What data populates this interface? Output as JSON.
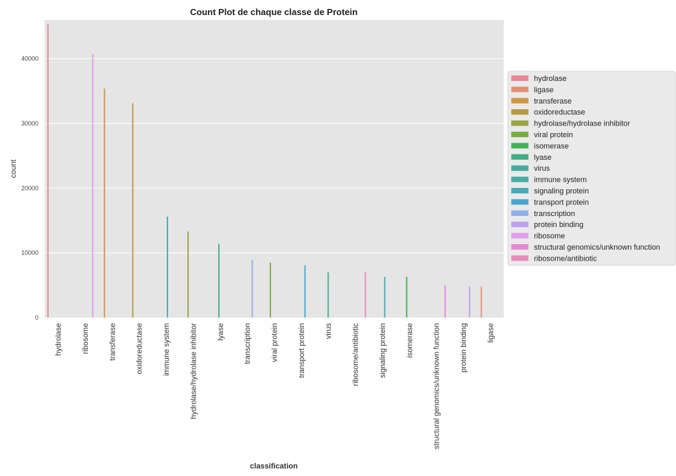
{
  "chart_data": {
    "type": "bar",
    "title": "Count Plot de chaque classe de Protein",
    "xlabel": "classification",
    "ylabel": "count",
    "ylim": [
      0,
      46000
    ],
    "yticks": [
      0,
      10000,
      20000,
      30000,
      40000
    ],
    "grid": true,
    "legend_position": "right",
    "categories": [
      "hydrolase",
      "ribosome",
      "transferase",
      "oxidoreductase",
      "immune system",
      "hydrolase/hydrolase inhibitor",
      "lyase",
      "transcription",
      "viral protein",
      "transport protein",
      "virus",
      "ribosome/antibiotic",
      "signaling protein",
      "isomerase",
      "structural genomics/unknown function",
      "protein binding",
      "ligase"
    ],
    "series": [
      {
        "name": "hydrolase",
        "color": "#ea8595",
        "values": [
          45400,
          0,
          0,
          0,
          0,
          0,
          0,
          0,
          0,
          0,
          0,
          0,
          0,
          0,
          0,
          0,
          0
        ]
      },
      {
        "name": "ligase",
        "color": "#e58e74",
        "values": [
          0,
          0,
          0,
          0,
          0,
          0,
          0,
          0,
          0,
          0,
          0,
          0,
          0,
          0,
          0,
          0,
          4800
        ]
      },
      {
        "name": "transferase",
        "color": "#d29745",
        "values": [
          0,
          0,
          35400,
          0,
          0,
          0,
          0,
          0,
          0,
          0,
          0,
          0,
          0,
          0,
          0,
          0,
          0
        ]
      },
      {
        "name": "oxidoreductase",
        "color": "#b59a44",
        "values": [
          0,
          0,
          0,
          33100,
          0,
          0,
          0,
          0,
          0,
          0,
          0,
          0,
          0,
          0,
          0,
          0,
          0
        ]
      },
      {
        "name": "hydrolase/hydrolase inhibitor",
        "color": "#9aa345",
        "values": [
          0,
          0,
          0,
          0,
          0,
          13300,
          0,
          0,
          0,
          0,
          0,
          0,
          0,
          0,
          0,
          0,
          0
        ]
      },
      {
        "name": "viral protein",
        "color": "#7bac44",
        "values": [
          0,
          0,
          0,
          0,
          0,
          0,
          0,
          0,
          8500,
          0,
          0,
          0,
          0,
          0,
          0,
          0,
          0
        ]
      },
      {
        "name": "isomerase",
        "color": "#45b153",
        "values": [
          0,
          0,
          0,
          0,
          0,
          0,
          0,
          0,
          0,
          0,
          0,
          0,
          0,
          6300,
          0,
          0,
          0
        ]
      },
      {
        "name": "lyase",
        "color": "#43ae84",
        "values": [
          0,
          0,
          0,
          0,
          0,
          0,
          11400,
          0,
          0,
          0,
          0,
          0,
          0,
          0,
          0,
          0,
          0
        ]
      },
      {
        "name": "virus",
        "color": "#45ab9b",
        "values": [
          0,
          0,
          0,
          0,
          0,
          0,
          0,
          0,
          0,
          0,
          7000,
          0,
          0,
          0,
          0,
          0,
          0
        ]
      },
      {
        "name": "immune system",
        "color": "#47aba8",
        "values": [
          0,
          0,
          0,
          0,
          15600,
          0,
          0,
          0,
          0,
          0,
          0,
          0,
          0,
          0,
          0,
          0,
          0
        ]
      },
      {
        "name": "signaling protein",
        "color": "#49a9b9",
        "values": [
          0,
          0,
          0,
          0,
          0,
          0,
          0,
          0,
          0,
          0,
          0,
          0,
          6300,
          0,
          0,
          0,
          0
        ]
      },
      {
        "name": "transport protein",
        "color": "#4aa6cf",
        "values": [
          0,
          0,
          0,
          0,
          0,
          0,
          0,
          0,
          0,
          8100,
          0,
          0,
          0,
          0,
          0,
          0,
          0
        ]
      },
      {
        "name": "transcription",
        "color": "#93aee9",
        "values": [
          0,
          0,
          0,
          0,
          0,
          0,
          0,
          8900,
          0,
          0,
          0,
          0,
          0,
          0,
          0,
          0,
          0
        ]
      },
      {
        "name": "protein binding",
        "color": "#bca2ec",
        "values": [
          0,
          0,
          0,
          0,
          0,
          0,
          0,
          0,
          0,
          0,
          0,
          0,
          0,
          0,
          0,
          4800,
          0
        ]
      },
      {
        "name": "ribosome",
        "color": "#de9ee5",
        "values": [
          0,
          40700,
          0,
          0,
          0,
          0,
          0,
          0,
          0,
          0,
          0,
          0,
          0,
          0,
          0,
          0,
          0
        ]
      },
      {
        "name": "structural genomics/unknown function",
        "color": "#e58ad5",
        "values": [
          0,
          0,
          0,
          0,
          0,
          0,
          0,
          0,
          0,
          0,
          0,
          0,
          0,
          0,
          5000,
          0,
          0
        ]
      },
      {
        "name": "ribosome/antibiotic",
        "color": "#e98bbc",
        "values": [
          0,
          0,
          0,
          0,
          0,
          0,
          0,
          0,
          0,
          0,
          0,
          7000,
          0,
          0,
          0,
          0,
          0
        ]
      }
    ]
  }
}
